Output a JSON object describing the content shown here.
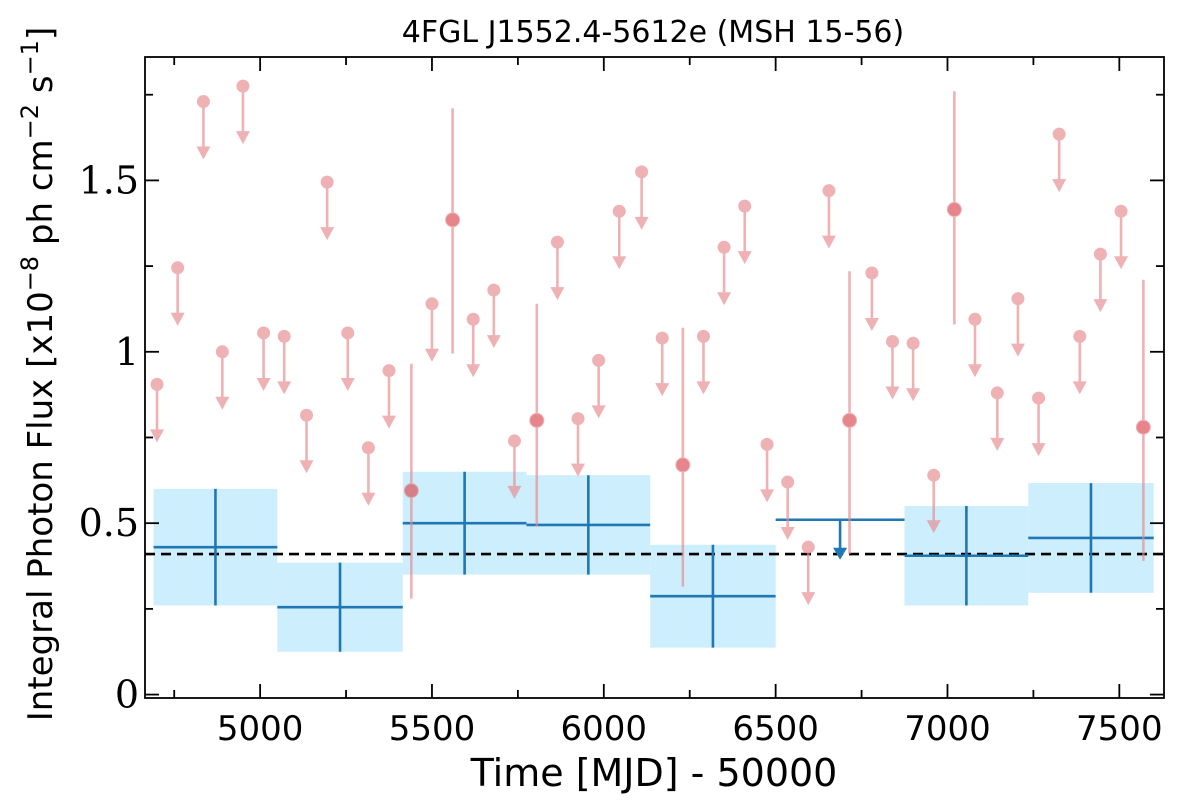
{
  "chart_data": {
    "type": "scatter",
    "title": "4FGL J1552.4-5612e (MSH 15-56)",
    "xlabel": "Time [MJD] - 50000",
    "ylabel": {
      "main": "Integral Photon Flux [x10",
      "exp1": "−8",
      "mid": " ph cm",
      "exp2": "−2",
      "mid2": " s",
      "exp3": "−1",
      "end": "]"
    },
    "xlim": [
      4665,
      7630
    ],
    "ylim": [
      -0.01,
      1.86
    ],
    "xticks": [
      5000,
      5500,
      6000,
      6500,
      7000,
      7500
    ],
    "yticks": [
      0,
      0.5,
      1,
      1.5
    ],
    "ytick_labels": [
      "0",
      "0.5",
      "1",
      "1.5"
    ],
    "mean_flux": 0.41,
    "colors": {
      "monthly": "#e8898d",
      "yearly": "#1f77b4",
      "band": "#cdeefc",
      "mean_line": "#000000"
    },
    "yearly_bins": [
      {
        "x0": 4690,
        "x1": 5050,
        "y": 0.43,
        "yerr": 0.17
      },
      {
        "x0": 5050,
        "x1": 5415,
        "y": 0.255,
        "yerr": 0.13
      },
      {
        "x0": 5415,
        "x1": 5775,
        "y": 0.5,
        "yerr": 0.15
      },
      {
        "x0": 5775,
        "x1": 6135,
        "y": 0.495,
        "yerr": 0.145
      },
      {
        "x0": 6135,
        "x1": 6500,
        "y": 0.287,
        "yerr": 0.15
      },
      {
        "x0": 6875,
        "x1": 7235,
        "y": 0.405,
        "yerr": 0.145
      },
      {
        "x0": 7235,
        "x1": 7600,
        "y": 0.457,
        "yerr": 0.16
      }
    ],
    "yearly_upper_limits": [
      {
        "x0": 6500,
        "x1": 6875,
        "y": 0.51
      }
    ],
    "monthly_upper_limits": [
      {
        "x": 4700,
        "y": 0.905
      },
      {
        "x": 4760,
        "y": 1.245
      },
      {
        "x": 4835,
        "y": 1.73
      },
      {
        "x": 4890,
        "y": 1.0
      },
      {
        "x": 4950,
        "y": 1.775
      },
      {
        "x": 5010,
        "y": 1.055
      },
      {
        "x": 5070,
        "y": 1.045
      },
      {
        "x": 5135,
        "y": 0.815
      },
      {
        "x": 5195,
        "y": 1.495
      },
      {
        "x": 5255,
        "y": 1.055
      },
      {
        "x": 5315,
        "y": 0.72
      },
      {
        "x": 5375,
        "y": 0.945
      },
      {
        "x": 5500,
        "y": 1.14
      },
      {
        "x": 5620,
        "y": 1.095
      },
      {
        "x": 5680,
        "y": 1.18
      },
      {
        "x": 5740,
        "y": 0.74
      },
      {
        "x": 5865,
        "y": 1.32
      },
      {
        "x": 5925,
        "y": 0.805
      },
      {
        "x": 5985,
        "y": 0.975
      },
      {
        "x": 6045,
        "y": 1.41
      },
      {
        "x": 6110,
        "y": 1.525
      },
      {
        "x": 6170,
        "y": 1.04
      },
      {
        "x": 6290,
        "y": 1.045
      },
      {
        "x": 6350,
        "y": 1.305
      },
      {
        "x": 6410,
        "y": 1.425
      },
      {
        "x": 6475,
        "y": 0.73
      },
      {
        "x": 6535,
        "y": 0.62
      },
      {
        "x": 6595,
        "y": 0.43
      },
      {
        "x": 6655,
        "y": 1.47
      },
      {
        "x": 6780,
        "y": 1.23
      },
      {
        "x": 6840,
        "y": 1.03
      },
      {
        "x": 6900,
        "y": 1.025
      },
      {
        "x": 6960,
        "y": 0.64
      },
      {
        "x": 7080,
        "y": 1.095
      },
      {
        "x": 7145,
        "y": 0.88
      },
      {
        "x": 7205,
        "y": 1.155
      },
      {
        "x": 7265,
        "y": 0.865
      },
      {
        "x": 7325,
        "y": 1.635
      },
      {
        "x": 7385,
        "y": 1.045
      },
      {
        "x": 7445,
        "y": 1.285
      },
      {
        "x": 7505,
        "y": 1.41
      }
    ],
    "monthly_detections": [
      {
        "x": 5440,
        "y": 0.595,
        "ylo": 0.28,
        "yhi": 0.965
      },
      {
        "x": 5560,
        "y": 1.385,
        "ylo": 0.995,
        "yhi": 1.71
      },
      {
        "x": 5805,
        "y": 0.8,
        "ylo": 0.49,
        "yhi": 1.14
      },
      {
        "x": 6230,
        "y": 0.67,
        "ylo": 0.315,
        "yhi": 1.07
      },
      {
        "x": 6715,
        "y": 0.8,
        "ylo": 0.41,
        "yhi": 1.235
      },
      {
        "x": 7020,
        "y": 1.415,
        "ylo": 1.08,
        "yhi": 1.76
      },
      {
        "x": 7570,
        "y": 0.78,
        "ylo": 0.39,
        "yhi": 1.21
      }
    ]
  }
}
